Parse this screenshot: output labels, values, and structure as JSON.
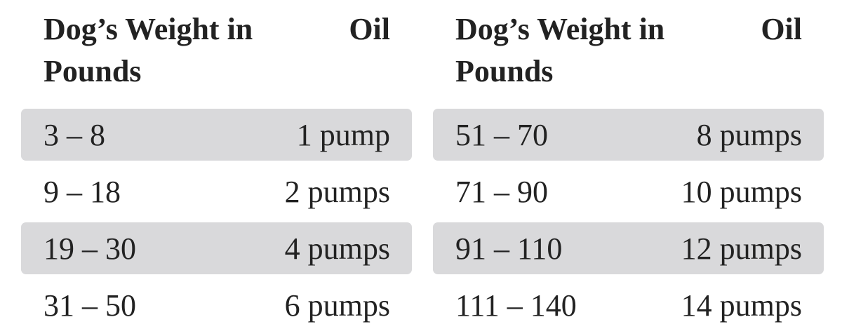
{
  "tables": [
    {
      "headers": [
        "Dog’s Weight in Pounds",
        "Oil"
      ],
      "rows": [
        [
          "3 – 8",
          "1 pump"
        ],
        [
          "9 – 18",
          "2 pumps"
        ],
        [
          "19 – 30",
          "4 pumps"
        ],
        [
          "31 – 50",
          "6 pumps"
        ]
      ]
    },
    {
      "headers": [
        "Dog’s Weight in Pounds",
        "Oil"
      ],
      "rows": [
        [
          "51 – 70",
          "8 pumps"
        ],
        [
          "71 – 90",
          "10 pumps"
        ],
        [
          "91 – 110",
          "12 pumps"
        ],
        [
          "111 – 140",
          "14 pumps"
        ]
      ]
    }
  ]
}
